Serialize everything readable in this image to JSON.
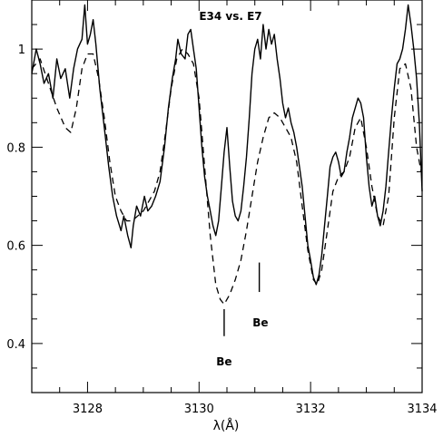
{
  "chart_data": {
    "type": "line",
    "title": "E34 vs. E7",
    "xlabel": "λ(Å)",
    "ylabel": "",
    "xlim": [
      3127.0,
      3134.0
    ],
    "ylim": [
      0.3,
      1.1
    ],
    "x_ticks": [
      3128,
      3130,
      3132,
      3134
    ],
    "y_ticks": [
      0.4,
      0.6,
      0.8,
      1.0
    ],
    "y_tick_labels": [
      "0.4",
      "0.6",
      "0.8",
      "1"
    ],
    "grid": false,
    "series": [
      {
        "style": "solid",
        "points": [
          [
            3127.0,
            0.95
          ],
          [
            3127.08,
            1.0
          ],
          [
            3127.15,
            0.97
          ],
          [
            3127.22,
            0.93
          ],
          [
            3127.3,
            0.95
          ],
          [
            3127.38,
            0.9
          ],
          [
            3127.45,
            0.98
          ],
          [
            3127.52,
            0.94
          ],
          [
            3127.6,
            0.96
          ],
          [
            3127.68,
            0.9
          ],
          [
            3127.75,
            0.96
          ],
          [
            3127.82,
            1.0
          ],
          [
            3127.9,
            1.02
          ],
          [
            3127.95,
            1.09
          ],
          [
            3128.0,
            1.01
          ],
          [
            3128.05,
            1.03
          ],
          [
            3128.1,
            1.06
          ],
          [
            3128.15,
            1.01
          ],
          [
            3128.22,
            0.92
          ],
          [
            3128.3,
            0.84
          ],
          [
            3128.38,
            0.76
          ],
          [
            3128.45,
            0.7
          ],
          [
            3128.52,
            0.66
          ],
          [
            3128.6,
            0.63
          ],
          [
            3128.65,
            0.66
          ],
          [
            3128.72,
            0.62
          ],
          [
            3128.78,
            0.595
          ],
          [
            3128.82,
            0.64
          ],
          [
            3128.88,
            0.68
          ],
          [
            3128.95,
            0.66
          ],
          [
            3129.02,
            0.7
          ],
          [
            3129.08,
            0.67
          ],
          [
            3129.15,
            0.68
          ],
          [
            3129.22,
            0.7
          ],
          [
            3129.3,
            0.73
          ],
          [
            3129.38,
            0.8
          ],
          [
            3129.45,
            0.88
          ],
          [
            3129.52,
            0.94
          ],
          [
            3129.58,
            0.98
          ],
          [
            3129.62,
            1.02
          ],
          [
            3129.68,
            0.99
          ],
          [
            3129.75,
            0.98
          ],
          [
            3129.8,
            1.03
          ],
          [
            3129.85,
            1.04
          ],
          [
            3129.9,
            1.0
          ],
          [
            3129.95,
            0.96
          ],
          [
            3130.0,
            0.88
          ],
          [
            3130.05,
            0.8
          ],
          [
            3130.1,
            0.74
          ],
          [
            3130.15,
            0.7
          ],
          [
            3130.2,
            0.67
          ],
          [
            3130.25,
            0.64
          ],
          [
            3130.3,
            0.62
          ],
          [
            3130.35,
            0.65
          ],
          [
            3130.4,
            0.72
          ],
          [
            3130.45,
            0.79
          ],
          [
            3130.5,
            0.84
          ],
          [
            3130.55,
            0.76
          ],
          [
            3130.6,
            0.69
          ],
          [
            3130.65,
            0.66
          ],
          [
            3130.7,
            0.65
          ],
          [
            3130.75,
            0.67
          ],
          [
            3130.8,
            0.72
          ],
          [
            3130.85,
            0.78
          ],
          [
            3130.9,
            0.86
          ],
          [
            3130.95,
            0.95
          ],
          [
            3131.0,
            1.0
          ],
          [
            3131.05,
            1.02
          ],
          [
            3131.1,
            0.98
          ],
          [
            3131.15,
            1.05
          ],
          [
            3131.2,
            1.0
          ],
          [
            3131.25,
            1.04
          ],
          [
            3131.3,
            1.01
          ],
          [
            3131.35,
            1.03
          ],
          [
            3131.4,
            0.98
          ],
          [
            3131.45,
            0.94
          ],
          [
            3131.5,
            0.89
          ],
          [
            3131.55,
            0.86
          ],
          [
            3131.6,
            0.88
          ],
          [
            3131.65,
            0.85
          ],
          [
            3131.7,
            0.83
          ],
          [
            3131.75,
            0.8
          ],
          [
            3131.8,
            0.76
          ],
          [
            3131.85,
            0.72
          ],
          [
            3131.9,
            0.66
          ],
          [
            3131.95,
            0.6
          ],
          [
            3132.0,
            0.57
          ],
          [
            3132.05,
            0.535
          ],
          [
            3132.1,
            0.52
          ],
          [
            3132.15,
            0.54
          ],
          [
            3132.2,
            0.58
          ],
          [
            3132.25,
            0.64
          ],
          [
            3132.3,
            0.7
          ],
          [
            3132.35,
            0.76
          ],
          [
            3132.4,
            0.78
          ],
          [
            3132.45,
            0.79
          ],
          [
            3132.5,
            0.77
          ],
          [
            3132.55,
            0.74
          ],
          [
            3132.6,
            0.75
          ],
          [
            3132.65,
            0.79
          ],
          [
            3132.7,
            0.82
          ],
          [
            3132.75,
            0.86
          ],
          [
            3132.8,
            0.88
          ],
          [
            3132.85,
            0.9
          ],
          [
            3132.9,
            0.89
          ],
          [
            3132.95,
            0.86
          ],
          [
            3133.0,
            0.78
          ],
          [
            3133.05,
            0.72
          ],
          [
            3133.1,
            0.68
          ],
          [
            3133.15,
            0.7
          ],
          [
            3133.2,
            0.66
          ],
          [
            3133.25,
            0.64
          ],
          [
            3133.3,
            0.67
          ],
          [
            3133.35,
            0.72
          ],
          [
            3133.4,
            0.79
          ],
          [
            3133.45,
            0.86
          ],
          [
            3133.5,
            0.92
          ],
          [
            3133.55,
            0.97
          ],
          [
            3133.6,
            0.98
          ],
          [
            3133.65,
            1.0
          ],
          [
            3133.7,
            1.04
          ],
          [
            3133.75,
            1.09
          ],
          [
            3133.8,
            1.05
          ],
          [
            3133.85,
            1.0
          ],
          [
            3133.9,
            0.94
          ],
          [
            3133.95,
            0.85
          ],
          [
            3134.0,
            0.71
          ]
        ]
      },
      {
        "style": "dashed",
        "points": [
          [
            3127.0,
            0.96
          ],
          [
            3127.15,
            0.98
          ],
          [
            3127.3,
            0.93
          ],
          [
            3127.45,
            0.88
          ],
          [
            3127.6,
            0.84
          ],
          [
            3127.7,
            0.83
          ],
          [
            3127.8,
            0.88
          ],
          [
            3127.9,
            0.96
          ],
          [
            3128.0,
            0.99
          ],
          [
            3128.1,
            0.99
          ],
          [
            3128.2,
            0.94
          ],
          [
            3128.3,
            0.86
          ],
          [
            3128.4,
            0.77
          ],
          [
            3128.5,
            0.7
          ],
          [
            3128.6,
            0.67
          ],
          [
            3128.7,
            0.65
          ],
          [
            3128.8,
            0.65
          ],
          [
            3128.9,
            0.66
          ],
          [
            3129.0,
            0.67
          ],
          [
            3129.1,
            0.69
          ],
          [
            3129.2,
            0.71
          ],
          [
            3129.3,
            0.75
          ],
          [
            3129.4,
            0.83
          ],
          [
            3129.5,
            0.92
          ],
          [
            3129.6,
            0.98
          ],
          [
            3129.7,
            1.0
          ],
          [
            3129.8,
            0.99
          ],
          [
            3129.9,
            0.97
          ],
          [
            3130.0,
            0.9
          ],
          [
            3130.1,
            0.76
          ],
          [
            3130.2,
            0.62
          ],
          [
            3130.3,
            0.52
          ],
          [
            3130.38,
            0.49
          ],
          [
            3130.45,
            0.48
          ],
          [
            3130.55,
            0.5
          ],
          [
            3130.65,
            0.53
          ],
          [
            3130.75,
            0.57
          ],
          [
            3130.85,
            0.63
          ],
          [
            3130.95,
            0.7
          ],
          [
            3131.05,
            0.77
          ],
          [
            3131.15,
            0.82
          ],
          [
            3131.25,
            0.86
          ],
          [
            3131.35,
            0.87
          ],
          [
            3131.45,
            0.86
          ],
          [
            3131.55,
            0.84
          ],
          [
            3131.65,
            0.82
          ],
          [
            3131.75,
            0.77
          ],
          [
            3131.85,
            0.68
          ],
          [
            3131.95,
            0.59
          ],
          [
            3132.05,
            0.53
          ],
          [
            3132.12,
            0.52
          ],
          [
            3132.2,
            0.55
          ],
          [
            3132.3,
            0.63
          ],
          [
            3132.4,
            0.71
          ],
          [
            3132.5,
            0.74
          ],
          [
            3132.6,
            0.75
          ],
          [
            3132.7,
            0.78
          ],
          [
            3132.8,
            0.84
          ],
          [
            3132.9,
            0.86
          ],
          [
            3133.0,
            0.8
          ],
          [
            3133.1,
            0.72
          ],
          [
            3133.2,
            0.66
          ],
          [
            3133.3,
            0.64
          ],
          [
            3133.4,
            0.7
          ],
          [
            3133.5,
            0.86
          ],
          [
            3133.6,
            0.96
          ],
          [
            3133.7,
            0.97
          ],
          [
            3133.8,
            0.92
          ],
          [
            3133.9,
            0.8
          ],
          [
            3134.0,
            0.74
          ]
        ]
      }
    ],
    "annotations": [
      {
        "text": "Be",
        "x": 3130.45,
        "y": 0.355,
        "line_x": 3130.45,
        "line_y": [
          0.415,
          0.47
        ]
      },
      {
        "text": "Be",
        "x": 3131.1,
        "y": 0.435,
        "line_x": 3131.08,
        "line_y": [
          0.505,
          0.565
        ]
      }
    ]
  }
}
